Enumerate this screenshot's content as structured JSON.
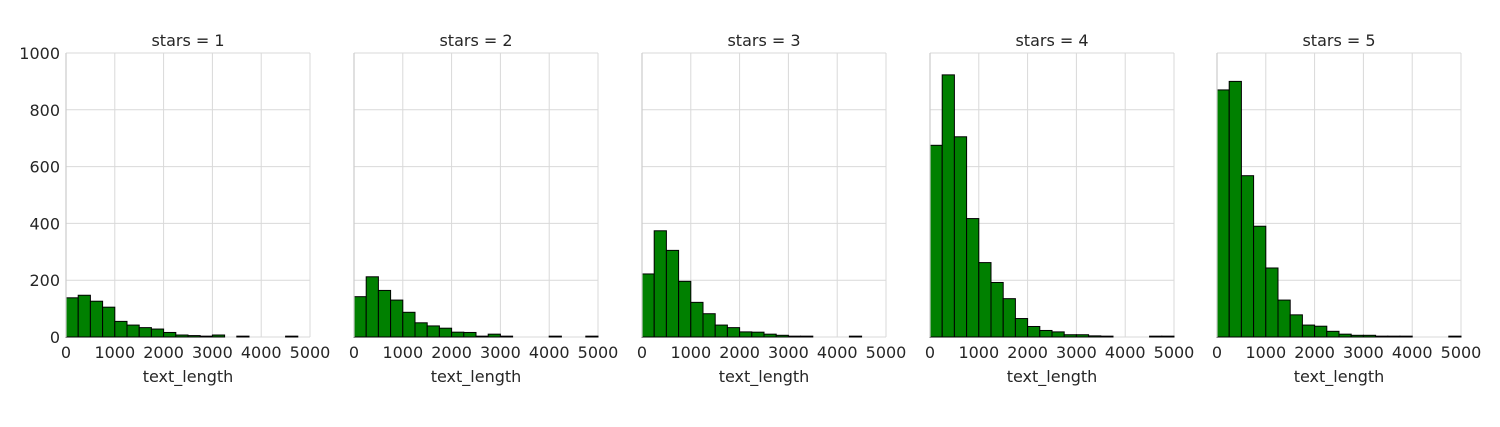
{
  "chart_data": {
    "type": "bar",
    "xlabel": "text_length",
    "ylabel": "",
    "xlim": [
      0,
      5000
    ],
    "ylim": [
      0,
      1000
    ],
    "bin_width": 250,
    "x_ticks": [
      0,
      1000,
      2000,
      3000,
      4000,
      5000
    ],
    "y_ticks": [
      0,
      200,
      400,
      600,
      800,
      1000
    ],
    "grid": true,
    "bar_color": "#008000",
    "edge_color": "#000000",
    "facets": [
      {
        "title": "stars = 1",
        "bins": [
          0,
          250,
          500,
          750,
          1000,
          1250,
          1500,
          1750,
          2000,
          2250,
          2500,
          2750,
          3000,
          3250,
          3500,
          3750,
          4000,
          4250,
          4500,
          4750
        ],
        "values": [
          138,
          147,
          126,
          105,
          55,
          42,
          33,
          28,
          16,
          7,
          5,
          3,
          7,
          0,
          3,
          0,
          0,
          0,
          3,
          0
        ]
      },
      {
        "title": "stars = 2",
        "bins": [
          0,
          250,
          500,
          750,
          1000,
          1250,
          1500,
          1750,
          2000,
          2250,
          2500,
          2750,
          3000,
          3250,
          3500,
          3750,
          4000,
          4250,
          4500,
          4750
        ],
        "values": [
          142,
          212,
          164,
          130,
          87,
          50,
          39,
          31,
          17,
          16,
          3,
          10,
          3,
          0,
          0,
          0,
          3,
          0,
          0,
          3
        ]
      },
      {
        "title": "stars = 3",
        "bins": [
          0,
          250,
          500,
          750,
          1000,
          1250,
          1500,
          1750,
          2000,
          2250,
          2500,
          2750,
          3000,
          3250,
          3500,
          3750,
          4000,
          4250,
          4500,
          4750
        ],
        "values": [
          222,
          374,
          305,
          196,
          122,
          82,
          42,
          33,
          18,
          17,
          10,
          6,
          3,
          3,
          0,
          0,
          0,
          3,
          0,
          0
        ]
      },
      {
        "title": "stars = 4",
        "bins": [
          0,
          250,
          500,
          750,
          1000,
          1250,
          1500,
          1750,
          2000,
          2250,
          2500,
          2750,
          3000,
          3250,
          3500,
          3750,
          4000,
          4250,
          4500,
          4750
        ],
        "values": [
          675,
          923,
          705,
          417,
          262,
          192,
          135,
          65,
          37,
          23,
          18,
          8,
          8,
          4,
          3,
          0,
          0,
          0,
          3,
          3
        ]
      },
      {
        "title": "stars = 5",
        "bins": [
          0,
          250,
          500,
          750,
          1000,
          1250,
          1500,
          1750,
          2000,
          2250,
          2500,
          2750,
          3000,
          3250,
          3500,
          3750,
          4000,
          4250,
          4500,
          4750
        ],
        "values": [
          870,
          900,
          568,
          390,
          243,
          130,
          78,
          42,
          38,
          20,
          10,
          6,
          6,
          3,
          3,
          3,
          0,
          0,
          0,
          3
        ]
      }
    ]
  }
}
